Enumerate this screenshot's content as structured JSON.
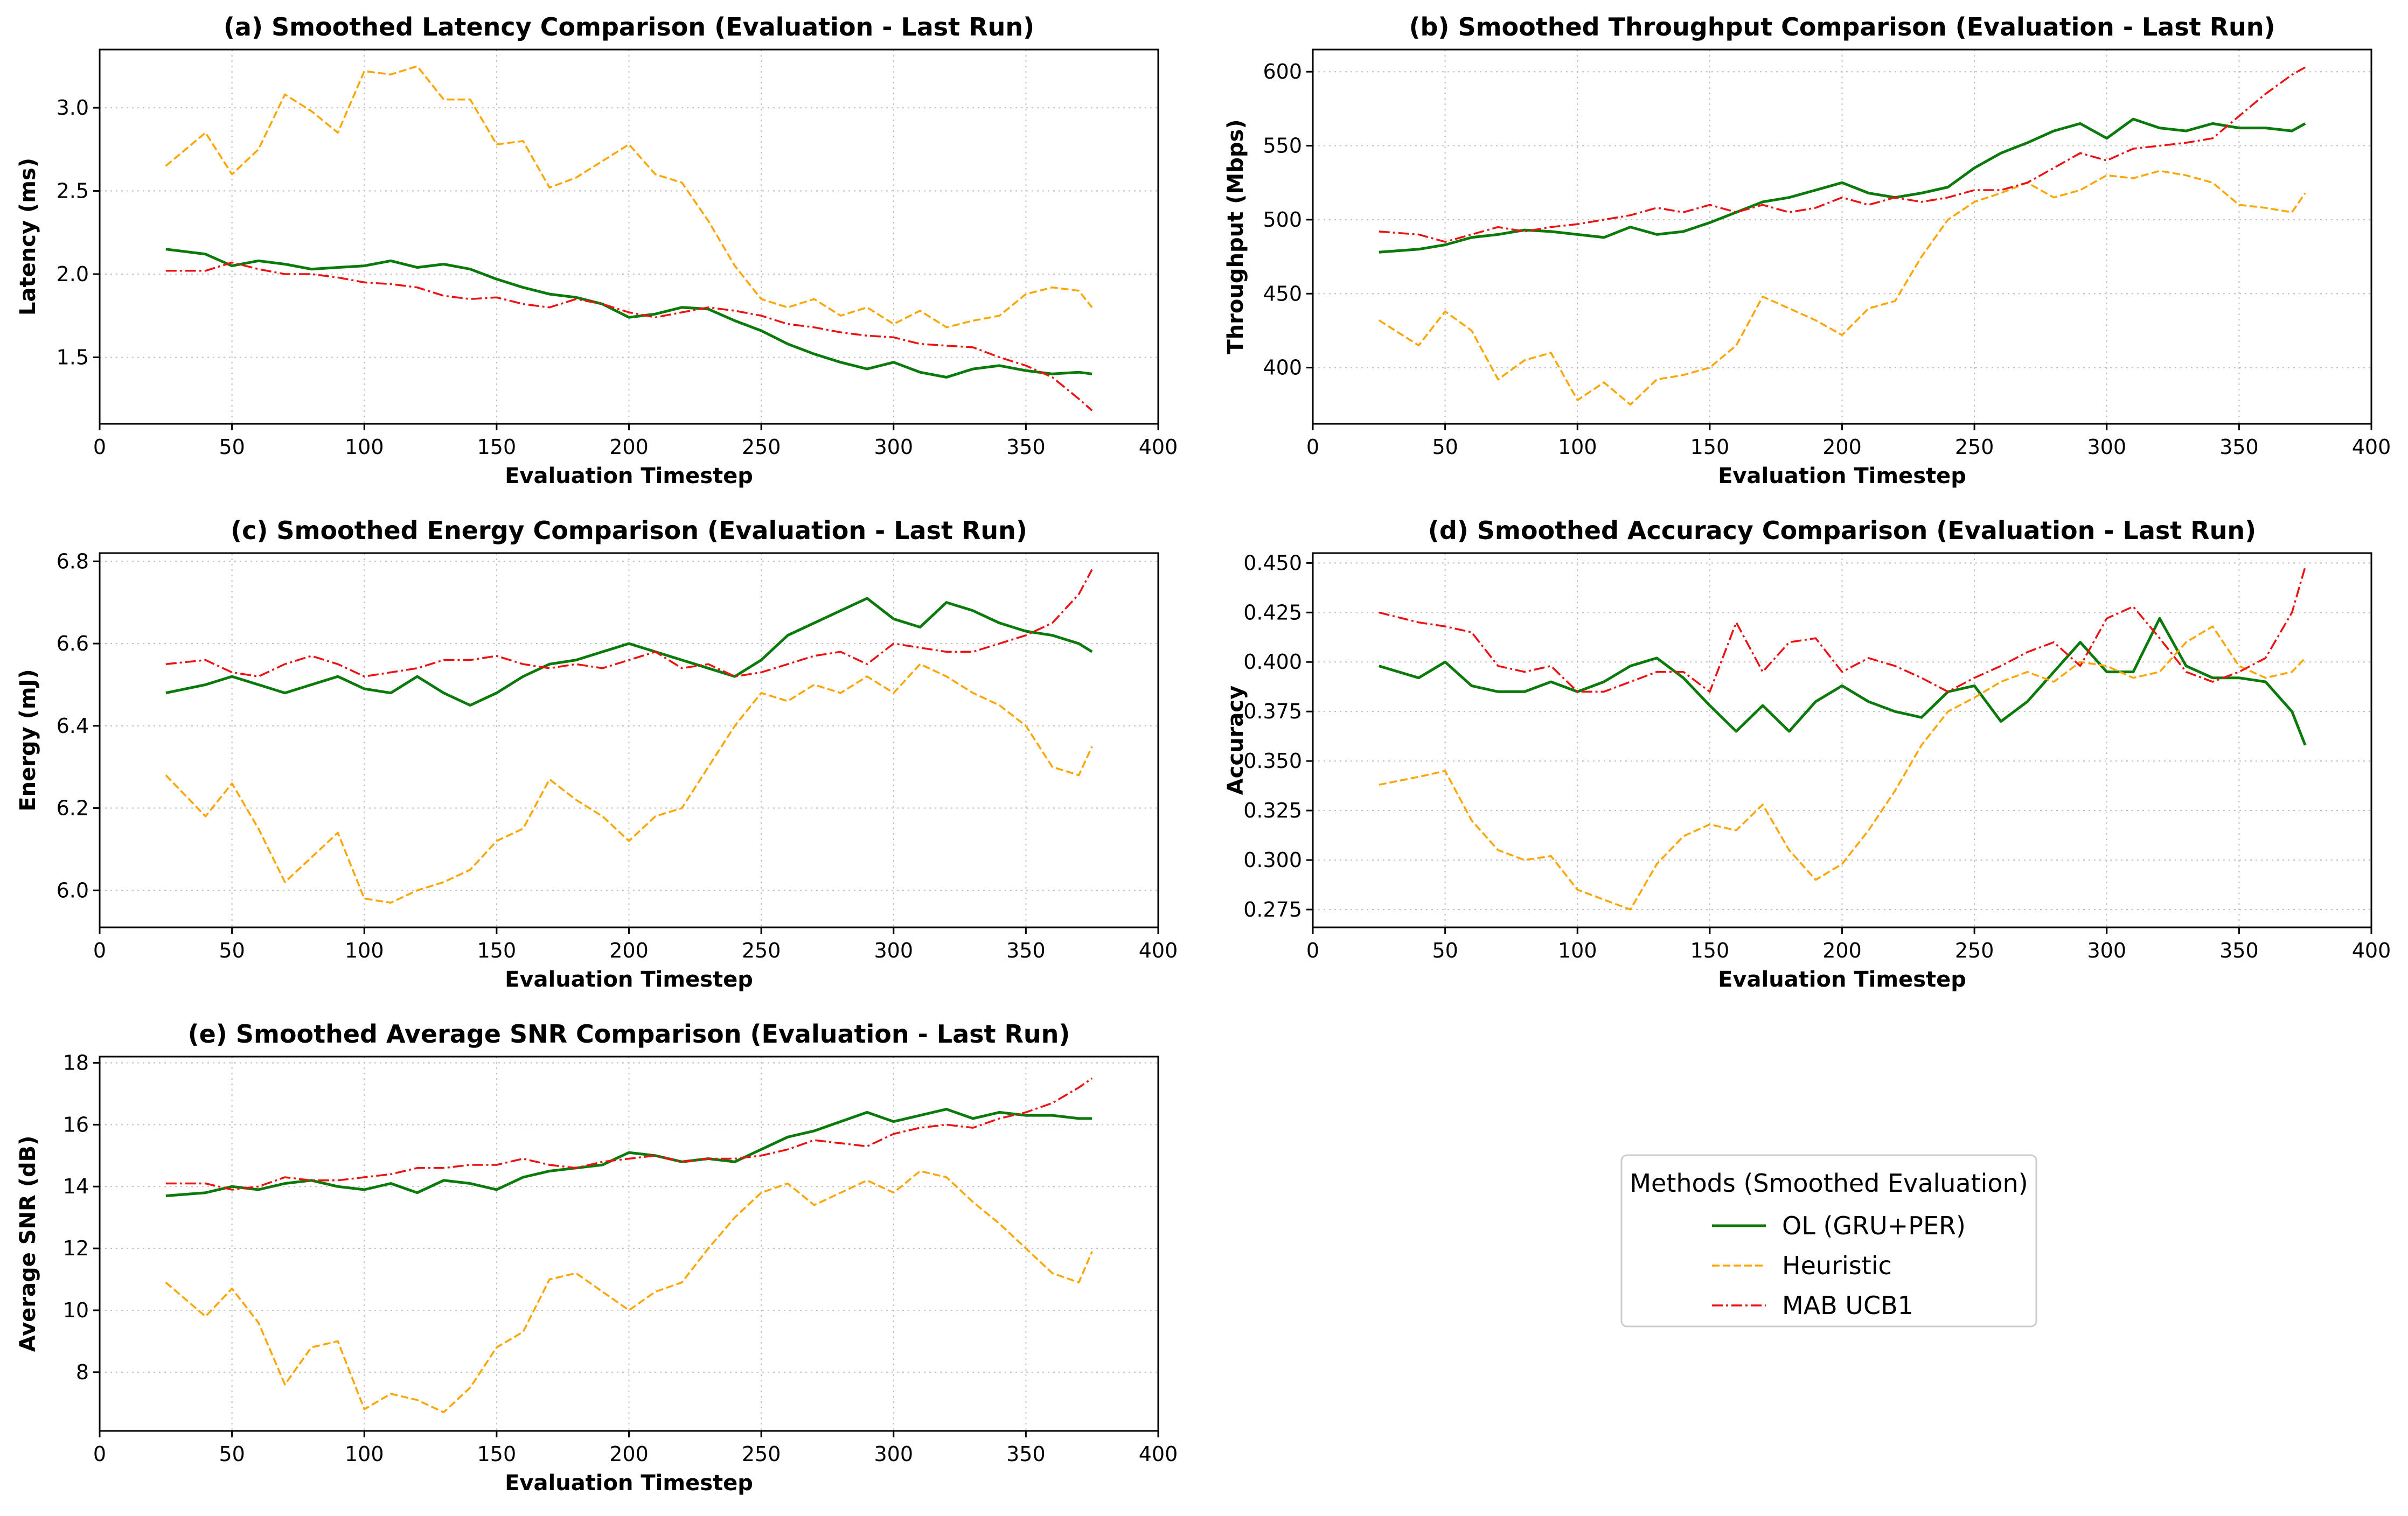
{
  "colors": {
    "ol": "#0a7a0a",
    "heuristic": "#ffa500",
    "mab": "#ee1111"
  },
  "legend": {
    "title": "Methods (Smoothed Evaluation)",
    "entries": [
      {
        "key": "ol",
        "label": "OL (GRU+PER)"
      },
      {
        "key": "heuristic",
        "label": "Heuristic"
      },
      {
        "key": "mab",
        "label": "MAB UCB1"
      }
    ]
  },
  "chart_data": [
    {
      "id": "latency",
      "type": "line",
      "title": "(a) Smoothed Latency Comparison (Evaluation - Last Run)",
      "xlabel": "Evaluation Timestep",
      "ylabel": "Latency (ms)",
      "xlim": [
        0,
        400
      ],
      "ylim": [
        1.1,
        3.35
      ],
      "xticks": [
        0,
        50,
        100,
        150,
        200,
        250,
        300,
        350,
        400
      ],
      "yticks": [
        1.5,
        2.0,
        2.5,
        3.0
      ],
      "ytick_labels": [
        "1.5",
        "2.0",
        "2.5",
        "3.0"
      ],
      "x": [
        25,
        40,
        50,
        60,
        70,
        80,
        90,
        100,
        110,
        120,
        130,
        140,
        150,
        160,
        170,
        180,
        190,
        200,
        210,
        220,
        230,
        240,
        250,
        260,
        270,
        280,
        290,
        300,
        310,
        320,
        330,
        340,
        350,
        360,
        370,
        375
      ],
      "series": [
        {
          "key": "ol",
          "name": "OL (GRU+PER)",
          "values": [
            2.15,
            2.12,
            2.05,
            2.08,
            2.06,
            2.03,
            2.04,
            2.05,
            2.08,
            2.04,
            2.06,
            2.03,
            1.97,
            1.92,
            1.88,
            1.86,
            1.82,
            1.74,
            1.76,
            1.8,
            1.79,
            1.72,
            1.66,
            1.58,
            1.52,
            1.47,
            1.43,
            1.47,
            1.41,
            1.38,
            1.43,
            1.45,
            1.42,
            1.4,
            1.41,
            1.4
          ]
        },
        {
          "key": "heuristic",
          "name": "Heuristic",
          "values": [
            2.65,
            2.85,
            2.6,
            2.75,
            3.08,
            2.98,
            2.85,
            3.22,
            3.2,
            3.25,
            3.05,
            3.05,
            2.78,
            2.8,
            2.52,
            2.58,
            2.68,
            2.78,
            2.6,
            2.55,
            2.32,
            2.05,
            1.85,
            1.8,
            1.85,
            1.75,
            1.8,
            1.7,
            1.78,
            1.68,
            1.72,
            1.75,
            1.88,
            1.92,
            1.9,
            1.8
          ]
        },
        {
          "key": "mab",
          "name": "MAB UCB1",
          "values": [
            2.02,
            2.02,
            2.07,
            2.03,
            2.0,
            2.0,
            1.98,
            1.95,
            1.94,
            1.92,
            1.87,
            1.85,
            1.86,
            1.82,
            1.8,
            1.85,
            1.82,
            1.77,
            1.74,
            1.77,
            1.8,
            1.78,
            1.75,
            1.7,
            1.68,
            1.65,
            1.63,
            1.62,
            1.58,
            1.57,
            1.56,
            1.5,
            1.45,
            1.38,
            1.25,
            1.18
          ]
        }
      ]
    },
    {
      "id": "throughput",
      "type": "line",
      "title": "(b) Smoothed Throughput Comparison (Evaluation - Last Run)",
      "xlabel": "Evaluation Timestep",
      "ylabel": "Throughput (Mbps)",
      "xlim": [
        0,
        400
      ],
      "ylim": [
        362,
        615
      ],
      "xticks": [
        0,
        50,
        100,
        150,
        200,
        250,
        300,
        350,
        400
      ],
      "yticks": [
        400,
        450,
        500,
        550,
        600
      ],
      "ytick_labels": [
        "400",
        "450",
        "500",
        "550",
        "600"
      ],
      "x": [
        25,
        40,
        50,
        60,
        70,
        80,
        90,
        100,
        110,
        120,
        130,
        140,
        150,
        160,
        170,
        180,
        190,
        200,
        210,
        220,
        230,
        240,
        250,
        260,
        270,
        280,
        290,
        300,
        310,
        320,
        330,
        340,
        350,
        360,
        370,
        375
      ],
      "series": [
        {
          "key": "ol",
          "name": "OL (GRU+PER)",
          "values": [
            478,
            480,
            483,
            488,
            490,
            493,
            492,
            490,
            488,
            495,
            490,
            492,
            498,
            505,
            512,
            515,
            520,
            525,
            518,
            515,
            518,
            522,
            535,
            545,
            552,
            560,
            565,
            555,
            568,
            562,
            560,
            565,
            562,
            562,
            560,
            565
          ]
        },
        {
          "key": "heuristic",
          "name": "Heuristic",
          "values": [
            432,
            415,
            438,
            425,
            392,
            405,
            410,
            378,
            390,
            375,
            392,
            395,
            400,
            415,
            448,
            440,
            432,
            422,
            440,
            445,
            475,
            500,
            512,
            518,
            525,
            515,
            520,
            530,
            528,
            533,
            530,
            525,
            510,
            508,
            505,
            518
          ]
        },
        {
          "key": "mab",
          "name": "MAB UCB1",
          "values": [
            492,
            490,
            485,
            490,
            495,
            492,
            495,
            497,
            500,
            503,
            508,
            505,
            510,
            505,
            510,
            505,
            508,
            515,
            510,
            515,
            512,
            515,
            520,
            520,
            525,
            535,
            545,
            540,
            548,
            550,
            552,
            555,
            570,
            585,
            598,
            603
          ]
        }
      ]
    },
    {
      "id": "energy",
      "type": "line",
      "title": "(c) Smoothed Energy Comparison (Evaluation - Last Run)",
      "xlabel": "Evaluation Timestep",
      "ylabel": "Energy (mJ)",
      "xlim": [
        0,
        400
      ],
      "ylim": [
        5.91,
        6.82
      ],
      "xticks": [
        0,
        50,
        100,
        150,
        200,
        250,
        300,
        350,
        400
      ],
      "yticks": [
        6.0,
        6.2,
        6.4,
        6.6,
        6.8
      ],
      "ytick_labels": [
        "6.0",
        "6.2",
        "6.4",
        "6.6",
        "6.8"
      ],
      "x": [
        25,
        40,
        50,
        60,
        70,
        80,
        90,
        100,
        110,
        120,
        130,
        140,
        150,
        160,
        170,
        180,
        190,
        200,
        210,
        220,
        230,
        240,
        250,
        260,
        270,
        280,
        290,
        300,
        310,
        320,
        330,
        340,
        350,
        360,
        370,
        375
      ],
      "series": [
        {
          "key": "ol",
          "name": "OL (GRU+PER)",
          "values": [
            6.48,
            6.5,
            6.52,
            6.5,
            6.48,
            6.5,
            6.52,
            6.49,
            6.48,
            6.52,
            6.48,
            6.45,
            6.48,
            6.52,
            6.55,
            6.56,
            6.58,
            6.6,
            6.58,
            6.56,
            6.54,
            6.52,
            6.56,
            6.62,
            6.65,
            6.68,
            6.71,
            6.66,
            6.64,
            6.7,
            6.68,
            6.65,
            6.63,
            6.62,
            6.6,
            6.58
          ]
        },
        {
          "key": "heuristic",
          "name": "Heuristic",
          "values": [
            6.28,
            6.18,
            6.26,
            6.15,
            6.02,
            6.08,
            6.14,
            5.98,
            5.97,
            6.0,
            6.02,
            6.05,
            6.12,
            6.15,
            6.27,
            6.22,
            6.18,
            6.12,
            6.18,
            6.2,
            6.3,
            6.4,
            6.48,
            6.46,
            6.5,
            6.48,
            6.52,
            6.48,
            6.55,
            6.52,
            6.48,
            6.45,
            6.4,
            6.3,
            6.28,
            6.35
          ]
        },
        {
          "key": "mab",
          "name": "MAB UCB1",
          "values": [
            6.55,
            6.56,
            6.53,
            6.52,
            6.55,
            6.57,
            6.55,
            6.52,
            6.53,
            6.54,
            6.56,
            6.56,
            6.57,
            6.55,
            6.54,
            6.55,
            6.54,
            6.56,
            6.58,
            6.54,
            6.55,
            6.52,
            6.53,
            6.55,
            6.57,
            6.58,
            6.55,
            6.6,
            6.59,
            6.58,
            6.58,
            6.6,
            6.62,
            6.65,
            6.72,
            6.78
          ]
        }
      ]
    },
    {
      "id": "accuracy",
      "type": "line",
      "title": "(d) Smoothed Accuracy Comparison (Evaluation - Last Run)",
      "xlabel": "Evaluation Timestep",
      "ylabel": "Accuracy",
      "xlim": [
        0,
        400
      ],
      "ylim": [
        0.266,
        0.455
      ],
      "xticks": [
        0,
        50,
        100,
        150,
        200,
        250,
        300,
        350,
        400
      ],
      "yticks": [
        0.275,
        0.3,
        0.325,
        0.35,
        0.375,
        0.4,
        0.425,
        0.45
      ],
      "ytick_labels": [
        "0.275",
        "0.300",
        "0.325",
        "0.350",
        "0.375",
        "0.400",
        "0.425",
        "0.450"
      ],
      "x": [
        25,
        40,
        50,
        60,
        70,
        80,
        90,
        100,
        110,
        120,
        130,
        140,
        150,
        160,
        170,
        180,
        190,
        200,
        210,
        220,
        230,
        240,
        250,
        260,
        270,
        280,
        290,
        300,
        310,
        320,
        330,
        340,
        350,
        360,
        370,
        375
      ],
      "series": [
        {
          "key": "ol",
          "name": "OL (GRU+PER)",
          "values": [
            0.398,
            0.392,
            0.4,
            0.388,
            0.385,
            0.385,
            0.39,
            0.385,
            0.39,
            0.398,
            0.402,
            0.392,
            0.378,
            0.365,
            0.378,
            0.365,
            0.38,
            0.388,
            0.38,
            0.375,
            0.372,
            0.385,
            0.388,
            0.37,
            0.38,
            0.395,
            0.41,
            0.395,
            0.395,
            0.422,
            0.398,
            0.392,
            0.392,
            0.39,
            0.375,
            0.358
          ]
        },
        {
          "key": "heuristic",
          "name": "Heuristic",
          "values": [
            0.338,
            0.342,
            0.345,
            0.32,
            0.305,
            0.3,
            0.302,
            0.285,
            0.28,
            0.275,
            0.298,
            0.312,
            0.318,
            0.315,
            0.328,
            0.305,
            0.29,
            0.298,
            0.315,
            0.335,
            0.358,
            0.375,
            0.382,
            0.39,
            0.395,
            0.39,
            0.4,
            0.398,
            0.392,
            0.395,
            0.41,
            0.418,
            0.398,
            0.392,
            0.395,
            0.402
          ]
        },
        {
          "key": "mab",
          "name": "MAB UCB1",
          "values": [
            0.425,
            0.42,
            0.418,
            0.415,
            0.398,
            0.395,
            0.398,
            0.385,
            0.385,
            0.39,
            0.395,
            0.395,
            0.385,
            0.42,
            0.395,
            0.41,
            0.412,
            0.395,
            0.402,
            0.398,
            0.392,
            0.385,
            0.392,
            0.398,
            0.405,
            0.41,
            0.398,
            0.422,
            0.428,
            0.412,
            0.395,
            0.39,
            0.395,
            0.402,
            0.425,
            0.448
          ]
        }
      ]
    },
    {
      "id": "snr",
      "type": "line",
      "title": "(e) Smoothed Average SNR Comparison (Evaluation - Last Run)",
      "xlabel": "Evaluation Timestep",
      "ylabel": "Average SNR (dB)",
      "xlim": [
        0,
        400
      ],
      "ylim": [
        6.1,
        18.2
      ],
      "xticks": [
        0,
        50,
        100,
        150,
        200,
        250,
        300,
        350,
        400
      ],
      "yticks": [
        8,
        10,
        12,
        14,
        16,
        18
      ],
      "ytick_labels": [
        "8",
        "10",
        "12",
        "14",
        "16",
        "18"
      ],
      "x": [
        25,
        40,
        50,
        60,
        70,
        80,
        90,
        100,
        110,
        120,
        130,
        140,
        150,
        160,
        170,
        180,
        190,
        200,
        210,
        220,
        230,
        240,
        250,
        260,
        270,
        280,
        290,
        300,
        310,
        320,
        330,
        340,
        350,
        360,
        370,
        375
      ],
      "series": [
        {
          "key": "ol",
          "name": "OL (GRU+PER)",
          "values": [
            13.7,
            13.8,
            14.0,
            13.9,
            14.1,
            14.2,
            14.0,
            13.9,
            14.1,
            13.8,
            14.2,
            14.1,
            13.9,
            14.3,
            14.5,
            14.6,
            14.7,
            15.1,
            15.0,
            14.8,
            14.9,
            14.8,
            15.2,
            15.6,
            15.8,
            16.1,
            16.4,
            16.1,
            16.3,
            16.5,
            16.2,
            16.4,
            16.3,
            16.3,
            16.2,
            16.2
          ]
        },
        {
          "key": "heuristic",
          "name": "Heuristic",
          "values": [
            10.9,
            9.8,
            10.7,
            9.6,
            7.6,
            8.8,
            9.0,
            6.8,
            7.3,
            7.1,
            6.7,
            7.5,
            8.8,
            9.3,
            11.0,
            11.2,
            10.6,
            10.0,
            10.6,
            10.9,
            12.0,
            13.0,
            13.8,
            14.1,
            13.4,
            13.8,
            14.2,
            13.8,
            14.5,
            14.3,
            13.5,
            12.8,
            12.0,
            11.2,
            10.9,
            11.9
          ]
        },
        {
          "key": "mab",
          "name": "MAB UCB1",
          "values": [
            14.1,
            14.1,
            13.9,
            14.0,
            14.3,
            14.2,
            14.2,
            14.3,
            14.4,
            14.6,
            14.6,
            14.7,
            14.7,
            14.9,
            14.7,
            14.6,
            14.8,
            14.9,
            15.0,
            14.8,
            14.9,
            14.9,
            15.0,
            15.2,
            15.5,
            15.4,
            15.3,
            15.7,
            15.9,
            16.0,
            15.9,
            16.2,
            16.4,
            16.7,
            17.2,
            17.5
          ]
        }
      ]
    }
  ]
}
